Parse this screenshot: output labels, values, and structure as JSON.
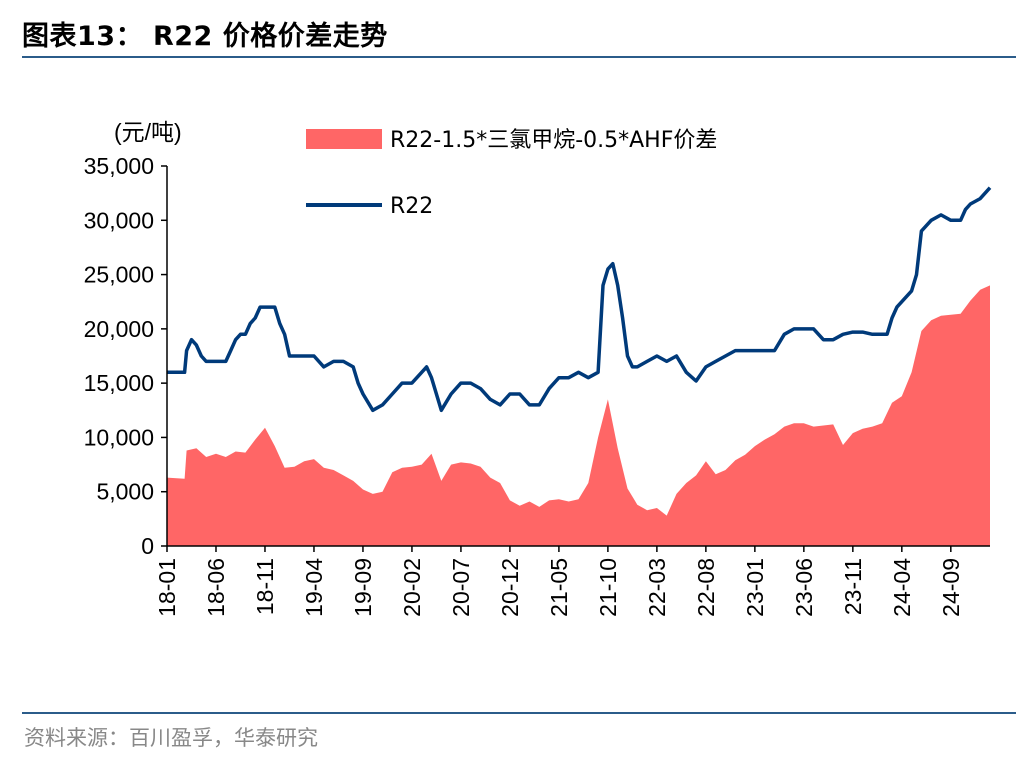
{
  "title": "图表13： R22 价格价差走势",
  "source": "资料来源：百川盈孚，华泰研究",
  "chart_data": {
    "type": "area+line",
    "ylabel": "(元/吨)",
    "ylim": [
      0,
      35000
    ],
    "yticks": [
      "0",
      "5,000",
      "10,000",
      "15,000",
      "20,000",
      "25,000",
      "30,000",
      "35,000"
    ],
    "ytick_values": [
      0,
      5000,
      10000,
      15000,
      20000,
      25000,
      30000,
      35000
    ],
    "xticks": [
      "18-01",
      "18-06",
      "18-11",
      "19-04",
      "19-09",
      "20-02",
      "20-07",
      "20-12",
      "21-05",
      "21-10",
      "22-03",
      "22-08",
      "23-01",
      "23-06",
      "23-11",
      "24-04",
      "24-09"
    ],
    "xtick_index": [
      0,
      5,
      10,
      15,
      20,
      25,
      30,
      35,
      40,
      45,
      50,
      55,
      60,
      65,
      70,
      75,
      80
    ],
    "legend_position": "top",
    "colors": {
      "spread": "#ff6666",
      "r22": "#003a7a",
      "axis": "#000000"
    },
    "series": [
      {
        "name": "R22-1.5*三氯甲烷-0.5*AHF价差",
        "kind": "area",
        "points": [
          [
            0,
            6300
          ],
          [
            1.8,
            6200
          ],
          [
            2,
            8800
          ],
          [
            3,
            9000
          ],
          [
            4,
            8200
          ],
          [
            5,
            8500
          ],
          [
            6,
            8200
          ],
          [
            7,
            8700
          ],
          [
            8,
            8600
          ],
          [
            9,
            9800
          ],
          [
            10,
            10900
          ],
          [
            11,
            9200
          ],
          [
            12,
            7200
          ],
          [
            13,
            7300
          ],
          [
            14,
            7800
          ],
          [
            15,
            8000
          ],
          [
            16,
            7200
          ],
          [
            17,
            7000
          ],
          [
            18,
            6500
          ],
          [
            19,
            6000
          ],
          [
            20,
            5200
          ],
          [
            21,
            4800
          ],
          [
            22,
            5000
          ],
          [
            23,
            6800
          ],
          [
            24,
            7200
          ],
          [
            25,
            7300
          ],
          [
            26,
            7500
          ],
          [
            27,
            8500
          ],
          [
            28,
            6000
          ],
          [
            29,
            7500
          ],
          [
            30,
            7700
          ],
          [
            31,
            7600
          ],
          [
            32,
            7300
          ],
          [
            33,
            6300
          ],
          [
            34,
            5800
          ],
          [
            35,
            4200
          ],
          [
            36,
            3700
          ],
          [
            37,
            4100
          ],
          [
            38,
            3600
          ],
          [
            39,
            4200
          ],
          [
            40,
            4300
          ],
          [
            41,
            4100
          ],
          [
            42,
            4300
          ],
          [
            43,
            5800
          ],
          [
            44,
            10000
          ],
          [
            45,
            13500
          ],
          [
            46,
            9000
          ],
          [
            47,
            5300
          ],
          [
            48,
            3800
          ],
          [
            49,
            3300
          ],
          [
            50,
            3500
          ],
          [
            51,
            2800
          ],
          [
            52,
            4800
          ],
          [
            53,
            5800
          ],
          [
            54,
            6500
          ],
          [
            55,
            7800
          ],
          [
            56,
            6600
          ],
          [
            57,
            7000
          ],
          [
            58,
            7900
          ],
          [
            59,
            8400
          ],
          [
            60,
            9200
          ],
          [
            61,
            9800
          ],
          [
            62,
            10300
          ],
          [
            63,
            11000
          ],
          [
            64,
            11300
          ],
          [
            65,
            11300
          ],
          [
            66,
            11000
          ],
          [
            67,
            11100
          ],
          [
            68,
            11200
          ],
          [
            69,
            9300
          ],
          [
            70,
            10400
          ],
          [
            71,
            10800
          ],
          [
            72,
            11000
          ],
          [
            73,
            11300
          ],
          [
            74,
            13200
          ],
          [
            75,
            13800
          ],
          [
            76,
            16000
          ],
          [
            77,
            19800
          ],
          [
            78,
            20800
          ],
          [
            79,
            21200
          ],
          [
            80,
            21300
          ],
          [
            81,
            21400
          ],
          [
            82,
            22600
          ],
          [
            83,
            23600
          ],
          [
            84,
            24000
          ]
        ]
      },
      {
        "name": "R22",
        "kind": "line",
        "points": [
          [
            0,
            16000
          ],
          [
            1.8,
            16000
          ],
          [
            2,
            18000
          ],
          [
            2.5,
            19000
          ],
          [
            3,
            18500
          ],
          [
            3.5,
            17500
          ],
          [
            4,
            17000
          ],
          [
            5,
            17000
          ],
          [
            6,
            17000
          ],
          [
            6.5,
            18000
          ],
          [
            7,
            19000
          ],
          [
            7.5,
            19500
          ],
          [
            8,
            19500
          ],
          [
            8.5,
            20500
          ],
          [
            9,
            21000
          ],
          [
            9.5,
            22000
          ],
          [
            10,
            22000
          ],
          [
            11,
            22000
          ],
          [
            11.5,
            20500
          ],
          [
            12,
            19500
          ],
          [
            12.5,
            17500
          ],
          [
            13,
            17500
          ],
          [
            14,
            17500
          ],
          [
            15,
            17500
          ],
          [
            16,
            16500
          ],
          [
            17,
            17000
          ],
          [
            18,
            17000
          ],
          [
            19,
            16500
          ],
          [
            19.5,
            15000
          ],
          [
            20,
            14000
          ],
          [
            21,
            12500
          ],
          [
            22,
            13000
          ],
          [
            23,
            14000
          ],
          [
            24,
            15000
          ],
          [
            25,
            15000
          ],
          [
            26,
            16000
          ],
          [
            26.5,
            16500
          ],
          [
            27,
            15500
          ],
          [
            28,
            12500
          ],
          [
            29,
            14000
          ],
          [
            30,
            15000
          ],
          [
            31,
            15000
          ],
          [
            32,
            14500
          ],
          [
            33,
            13500
          ],
          [
            34,
            13000
          ],
          [
            35,
            14000
          ],
          [
            36,
            14000
          ],
          [
            37,
            13000
          ],
          [
            38,
            13000
          ],
          [
            39,
            14500
          ],
          [
            40,
            15500
          ],
          [
            41,
            15500
          ],
          [
            42,
            16000
          ],
          [
            43,
            15500
          ],
          [
            44,
            16000
          ],
          [
            44.5,
            24000
          ],
          [
            45,
            25500
          ],
          [
            45.5,
            26000
          ],
          [
            46,
            24000
          ],
          [
            46.5,
            21000
          ],
          [
            47,
            17500
          ],
          [
            47.5,
            16500
          ],
          [
            48,
            16500
          ],
          [
            49,
            17000
          ],
          [
            50,
            17500
          ],
          [
            51,
            17000
          ],
          [
            52,
            17500
          ],
          [
            53,
            16000
          ],
          [
            54,
            15200
          ],
          [
            55,
            16500
          ],
          [
            56,
            17000
          ],
          [
            57,
            17500
          ],
          [
            58,
            18000
          ],
          [
            59,
            18000
          ],
          [
            60,
            18000
          ],
          [
            61,
            18000
          ],
          [
            62,
            18000
          ],
          [
            63,
            19500
          ],
          [
            64,
            20000
          ],
          [
            65,
            20000
          ],
          [
            66,
            20000
          ],
          [
            67,
            19000
          ],
          [
            68,
            19000
          ],
          [
            69,
            19500
          ],
          [
            70,
            19700
          ],
          [
            71,
            19700
          ],
          [
            72,
            19500
          ],
          [
            73,
            19500
          ],
          [
            73.5,
            19500
          ],
          [
            74,
            21000
          ],
          [
            74.5,
            22000
          ],
          [
            75,
            22500
          ],
          [
            76,
            23500
          ],
          [
            76.5,
            25000
          ],
          [
            77,
            29000
          ],
          [
            78,
            30000
          ],
          [
            79,
            30500
          ],
          [
            80,
            30000
          ],
          [
            81,
            30000
          ],
          [
            81.5,
            31000
          ],
          [
            82,
            31500
          ],
          [
            83,
            32000
          ],
          [
            84,
            33000
          ]
        ]
      }
    ]
  }
}
